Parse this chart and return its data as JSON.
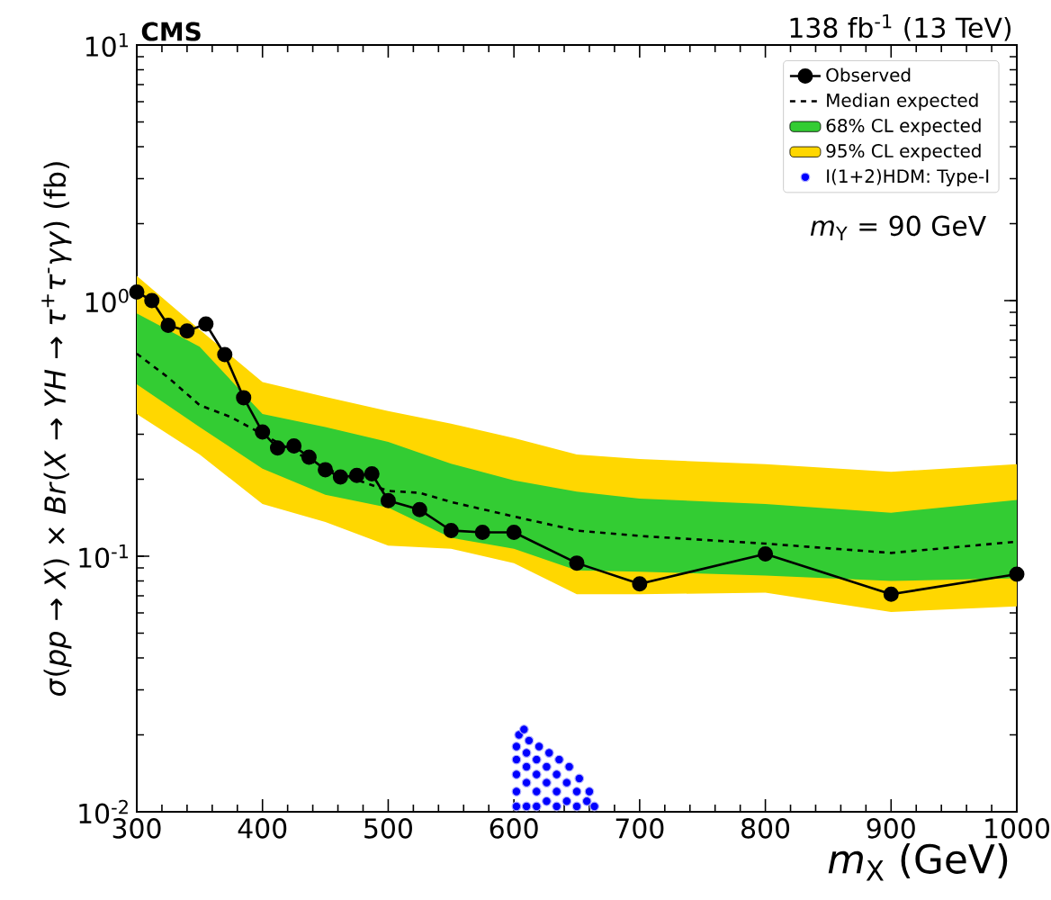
{
  "chart_data": {
    "type": "line",
    "xlabel": "*m*$_{X}$ (GeV)",
    "ylabel": "*σ*(*pp* → *X*) × *Br*(*X* → *YH* → *τ*$^{+}$*τ*$^{-}$*γγ*) (fb)",
    "annotations": [
      "CMS",
      "138 fb$^{-1}$ (13 TeV)",
      "*m*$_{Y}$ = 90 GeV"
    ],
    "log": "y",
    "legend": "top right",
    "grid": false,
    "xlim": [
      300,
      1000
    ],
    "xticks": [
      300,
      400,
      500,
      600,
      700,
      800,
      900,
      1000
    ],
    "ylim": [
      0.01,
      10
    ],
    "yticks": [
      {
        "value": 0.01,
        "label": "10$^{-2}$"
      },
      {
        "value": 0.1,
        "label": "10$^{-1}$"
      },
      {
        "value": 1,
        "label": "10$^{0}$"
      },
      {
        "value": 10,
        "label": "10$^{1}$"
      }
    ],
    "series": [
      {
        "name": "Observed",
        "type": "line",
        "color": "#000000",
        "marker": "circle",
        "line_style": "solid",
        "x": [
          300,
          312,
          325,
          340,
          355,
          370,
          385,
          400,
          412,
          425,
          437,
          450,
          462,
          475,
          487,
          500,
          525,
          550,
          575,
          600,
          650,
          700,
          800,
          900,
          1000
        ],
        "values": [
          1.08,
          1.0,
          0.8,
          0.76,
          0.81,
          0.615,
          0.417,
          0.306,
          0.265,
          0.27,
          0.244,
          0.218,
          0.204,
          0.207,
          0.21,
          0.165,
          0.152,
          0.126,
          0.124,
          0.124,
          0.094,
          0.078,
          0.102,
          0.071,
          0.085
        ]
      },
      {
        "name": "Median expected",
        "type": "line",
        "color": "#000000",
        "marker": "none",
        "line_style": "dashed",
        "x": [
          300,
          325,
          350,
          375,
          400,
          450,
          500,
          525,
          550,
          600,
          650,
          700,
          800,
          900,
          1000
        ],
        "values": [
          0.62,
          0.5,
          0.39,
          0.35,
          0.3,
          0.22,
          0.18,
          0.177,
          0.163,
          0.143,
          0.126,
          0.12,
          0.112,
          0.103,
          0.114
        ]
      },
      {
        "name": "68% CL expected",
        "color": "#33cc33",
        "x": [
          300,
          350,
          400,
          450,
          500,
          550,
          600,
          650,
          700,
          800,
          900,
          1000
        ],
        "values": [
          null,
          null,
          null,
          null,
          null,
          null,
          null,
          null,
          null,
          null,
          null,
          null
        ],
        "lower": [
          0.47,
          0.32,
          0.22,
          0.174,
          0.155,
          0.118,
          0.107,
          0.088,
          0.087,
          0.084,
          0.08,
          0.082
        ],
        "upper": [
          0.89,
          0.66,
          0.36,
          0.32,
          0.28,
          0.23,
          0.198,
          0.179,
          0.168,
          0.16,
          0.148,
          0.166
        ]
      },
      {
        "name": "95% CL expected",
        "color": "#ffd700",
        "x": [
          300,
          350,
          400,
          450,
          500,
          550,
          600,
          650,
          700,
          800,
          900,
          1000
        ],
        "values": [
          null,
          null,
          null,
          null,
          null,
          null,
          null,
          null,
          null,
          null,
          null,
          null
        ],
        "lower": [
          0.36,
          0.25,
          0.16,
          0.136,
          0.11,
          0.107,
          0.094,
          0.071,
          0.071,
          0.072,
          0.0605,
          0.0636
        ],
        "upper": [
          1.25,
          0.77,
          0.48,
          0.42,
          0.37,
          0.33,
          0.29,
          0.25,
          0.24,
          0.229,
          0.214,
          0.229
        ]
      },
      {
        "name": "I(1+2)HDM: Type-I",
        "type": "scatter",
        "color": "#0000ff",
        "marker": "circle",
        "x": [
          602,
          602,
          602,
          602,
          602,
          604,
          608,
          610,
          610,
          610,
          610,
          612,
          618,
          618,
          618,
          618,
          620,
          626,
          626,
          626,
          628,
          634,
          634,
          634,
          636,
          642,
          642,
          644,
          650,
          650,
          652,
          658,
          660,
          664
        ],
        "values": [
          0.0105,
          0.012,
          0.014,
          0.016,
          0.018,
          0.02,
          0.021,
          0.0105,
          0.013,
          0.015,
          0.017,
          0.019,
          0.0105,
          0.012,
          0.014,
          0.016,
          0.018,
          0.011,
          0.013,
          0.015,
          0.017,
          0.0105,
          0.012,
          0.014,
          0.016,
          0.011,
          0.013,
          0.015,
          0.0105,
          0.012,
          0.0135,
          0.011,
          0.012,
          0.0105
        ]
      }
    ]
  }
}
